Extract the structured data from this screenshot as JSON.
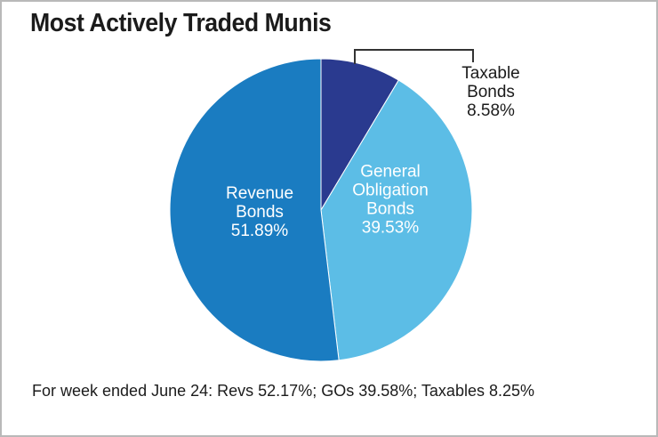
{
  "title": "Most Actively Traded Munis",
  "footnote": "For week ended June 24: Revs 52.17%; GOs 39.58%; Taxables 8.25%",
  "chart_data": {
    "type": "pie",
    "title": "Most Actively Traded Munis",
    "slices": [
      {
        "label_lines": [
          "Taxable",
          "Bonds"
        ],
        "value": 8.58,
        "value_label": "8.58%",
        "color": "#2a3a8f"
      },
      {
        "label_lines": [
          "General",
          "Obligation",
          "Bonds"
        ],
        "value": 39.53,
        "value_label": "39.53%",
        "color": "#5cbde6"
      },
      {
        "label_lines": [
          "Revenue",
          "Bonds"
        ],
        "value": 51.89,
        "value_label": "51.89%",
        "color": "#1a7cc1"
      }
    ],
    "start_angle": "12 o'clock",
    "direction": "clockwise"
  }
}
